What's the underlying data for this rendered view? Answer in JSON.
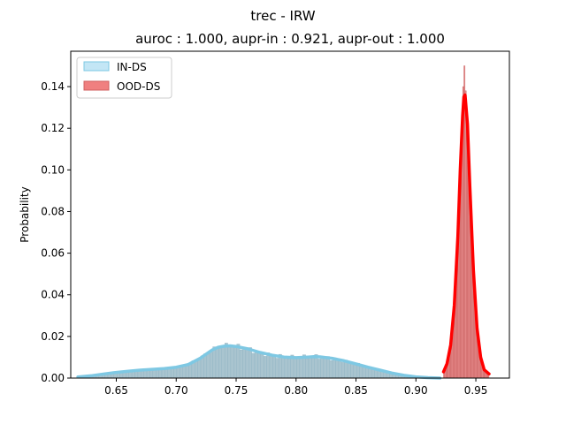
{
  "chart_data": {
    "type": "histogram",
    "title": "trec - IRW",
    "subtitle": "auroc : 1.000, aupr-in : 0.921, aupr-out : 1.000",
    "xlabel": "",
    "ylabel": "Probability",
    "xlim": [
      0.612,
      0.978
    ],
    "ylim": [
      0,
      0.157
    ],
    "xticks": [
      "0.65",
      "0.70",
      "0.75",
      "0.80",
      "0.85",
      "0.90",
      "0.95"
    ],
    "yticks": [
      "0.00",
      "0.02",
      "0.04",
      "0.06",
      "0.08",
      "0.10",
      "0.12",
      "0.14"
    ],
    "grid": false,
    "legend_position": "top-left",
    "series": [
      {
        "name": "IN-DS",
        "fill_color": "#87ceeb",
        "line_color": "#7ec8e3",
        "kde": [
          [
            0.618,
            0.0005
          ],
          [
            0.63,
            0.0012
          ],
          [
            0.64,
            0.002
          ],
          [
            0.65,
            0.0027
          ],
          [
            0.66,
            0.0033
          ],
          [
            0.67,
            0.0038
          ],
          [
            0.68,
            0.0042
          ],
          [
            0.69,
            0.0046
          ],
          [
            0.7,
            0.0052
          ],
          [
            0.71,
            0.0065
          ],
          [
            0.72,
            0.0095
          ],
          [
            0.73,
            0.0135
          ],
          [
            0.735,
            0.0148
          ],
          [
            0.74,
            0.0153
          ],
          [
            0.745,
            0.0155
          ],
          [
            0.75,
            0.0152
          ],
          [
            0.76,
            0.014
          ],
          [
            0.77,
            0.0123
          ],
          [
            0.78,
            0.011
          ],
          [
            0.79,
            0.0101
          ],
          [
            0.8,
            0.0098
          ],
          [
            0.81,
            0.0101
          ],
          [
            0.815,
            0.0103
          ],
          [
            0.82,
            0.0102
          ],
          [
            0.83,
            0.0095
          ],
          [
            0.84,
            0.0083
          ],
          [
            0.85,
            0.0068
          ],
          [
            0.86,
            0.0052
          ],
          [
            0.87,
            0.0038
          ],
          [
            0.88,
            0.0024
          ],
          [
            0.89,
            0.0013
          ],
          [
            0.9,
            0.0006
          ],
          [
            0.91,
            0.0002
          ],
          [
            0.92,
            0.0
          ]
        ]
      },
      {
        "name": "OOD-DS",
        "fill_color": "#f08080",
        "line_color": "#ff0000",
        "kde": [
          [
            0.923,
            0.003
          ],
          [
            0.926,
            0.007
          ],
          [
            0.929,
            0.016
          ],
          [
            0.932,
            0.035
          ],
          [
            0.935,
            0.068
          ],
          [
            0.937,
            0.1
          ],
          [
            0.939,
            0.126
          ],
          [
            0.94,
            0.135
          ],
          [
            0.941,
            0.136
          ],
          [
            0.943,
            0.122
          ],
          [
            0.945,
            0.092
          ],
          [
            0.948,
            0.052
          ],
          [
            0.951,
            0.024
          ],
          [
            0.954,
            0.01
          ],
          [
            0.957,
            0.004
          ],
          [
            0.961,
            0.002
          ]
        ],
        "peak_bins": [
          [
            0.9405,
            0.15
          ],
          [
            0.9395,
            0.14
          ],
          [
            0.9415,
            0.138
          ]
        ]
      }
    ]
  }
}
